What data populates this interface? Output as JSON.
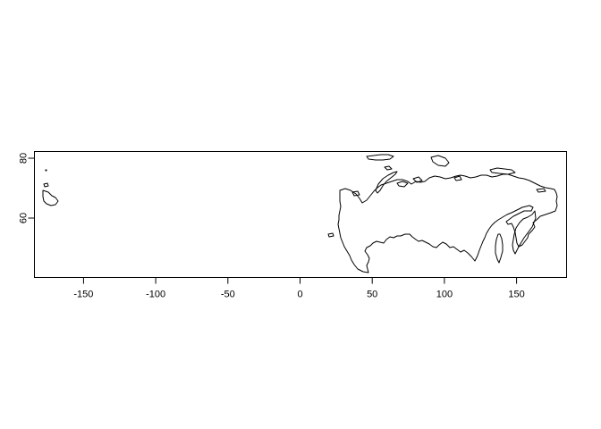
{
  "chart_data": {
    "type": "map",
    "region": "Russia",
    "title": "",
    "xlabel": "",
    "ylabel": "",
    "xlim": [
      -180,
      180
    ],
    "ylim": [
      41,
      82
    ],
    "x_ticks": [
      -150,
      -100,
      -50,
      0,
      50,
      100,
      150
    ],
    "x_tick_labels": [
      "-150",
      "-100",
      "-50",
      "0",
      "50",
      "100",
      "150"
    ],
    "y_ticks": [
      60,
      80
    ],
    "y_tick_labels": [
      "60",
      "80"
    ],
    "grid": false,
    "legend": "none",
    "colors": {
      "outline": "#000000",
      "background": "#ffffff"
    }
  }
}
